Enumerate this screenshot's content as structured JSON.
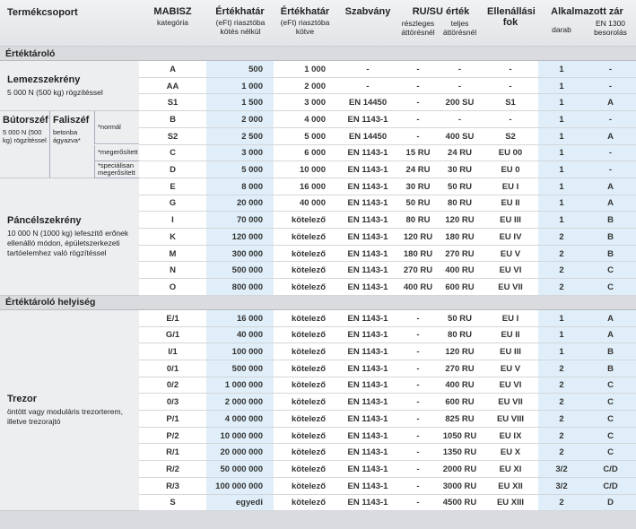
{
  "header": {
    "group": "Termékcsoport",
    "mabisz": {
      "title": "MABISZ",
      "sub": "kategória"
    },
    "limit1": {
      "title": "Értékhatár",
      "sub": "(eFt) riasztóba kötés nélkül"
    },
    "limit2": {
      "title": "Értékhatár",
      "sub": "(eFt) riasztóba kötve"
    },
    "standard": "Szabvány",
    "ru": {
      "title": "RU/SU érték",
      "partial": "részleges áttörésnél",
      "full": "teljes áttörésnél"
    },
    "grade": "Ellenállási fok",
    "lock": {
      "title": "Alkalmazott zár",
      "count": "darab",
      "en": "EN 1300 besorolás"
    }
  },
  "sections": [
    {
      "title": "Értéktároló",
      "groups": [
        {
          "name": "Lemezszekrény",
          "desc": "5 000 N (500 kg) rögzítéssel",
          "rows": [
            [
              "A",
              "500",
              "1 000",
              "-",
              "-",
              "-",
              "-",
              "1",
              "-"
            ],
            [
              "AA",
              "1 000",
              "2 000",
              "-",
              "-",
              "-",
              "-",
              "1",
              "-"
            ],
            [
              "S1",
              "1 500",
              "3 000",
              "EN 14450",
              "-",
              "200 SU",
              "S1",
              "1",
              "A"
            ]
          ]
        },
        {
          "name": "Bútorszéf",
          "desc": "5 000 N (500 kg) rögzítéssel",
          "name2": "Faliszéf",
          "desc2": "betonba ágyazva*",
          "note_groups": [
            {
              "note": "*normál",
              "rows": [
                [
                  "B",
                  "2 000",
                  "4 000",
                  "EN 1143-1",
                  "-",
                  "-",
                  "-",
                  "1",
                  "-"
                ],
                [
                  "S2",
                  "2 500",
                  "5 000",
                  "EN 14450",
                  "-",
                  "400 SU",
                  "S2",
                  "1",
                  "A"
                ]
              ]
            },
            {
              "note": "*megerősített",
              "rows": [
                [
                  "C",
                  "3 000",
                  "6 000",
                  "EN 1143-1",
                  "15 RU",
                  "24 RU",
                  "EU 00",
                  "1",
                  "-"
                ]
              ]
            },
            {
              "note": "*speciálisan megerősített",
              "rows": [
                [
                  "D",
                  "5 000",
                  "10 000",
                  "EN 1143-1",
                  "24 RU",
                  "30 RU",
                  "EU 0",
                  "1",
                  "-"
                ]
              ]
            }
          ]
        },
        {
          "name": "Páncélszekrény",
          "desc": "10 000 N (1000 kg) lefeszítő erőnek ellenálló módon, épületszerkezeti tartóelemhez való rögzítéssel",
          "rows": [
            [
              "E",
              "8 000",
              "16 000",
              "EN 1143-1",
              "30 RU",
              "50 RU",
              "EU I",
              "1",
              "A"
            ],
            [
              "G",
              "20 000",
              "40 000",
              "EN 1143-1",
              "50 RU",
              "80 RU",
              "EU II",
              "1",
              "A"
            ],
            [
              "I",
              "70 000",
              "kötelező",
              "EN 1143-1",
              "80 RU",
              "120 RU",
              "EU III",
              "1",
              "B"
            ],
            [
              "K",
              "120 000",
              "kötelező",
              "EN 1143-1",
              "120 RU",
              "180 RU",
              "EU IV",
              "2",
              "B"
            ],
            [
              "M",
              "300 000",
              "kötelező",
              "EN 1143-1",
              "180 RU",
              "270 RU",
              "EU V",
              "2",
              "B"
            ],
            [
              "N",
              "500 000",
              "kötelező",
              "EN 1143-1",
              "270 RU",
              "400 RU",
              "EU VI",
              "2",
              "C"
            ],
            [
              "O",
              "800 000",
              "kötelező",
              "EN 1143-1",
              "400 RU",
              "600 RU",
              "EU VII",
              "2",
              "C"
            ]
          ]
        }
      ]
    },
    {
      "title": "Értéktároló helyiség",
      "groups": [
        {
          "name": "Trezor",
          "desc": "öntött vagy moduláris trezorterem, illetve trezorajtó",
          "rows": [
            [
              "E/1",
              "16 000",
              "kötelező",
              "EN 1143-1",
              "-",
              "50 RU",
              "EU I",
              "1",
              "A"
            ],
            [
              "G/1",
              "40 000",
              "kötelező",
              "EN 1143-1",
              "-",
              "80 RU",
              "EU II",
              "1",
              "A"
            ],
            [
              "I/1",
              "100 000",
              "kötelező",
              "EN 1143-1",
              "-",
              "120 RU",
              "EU III",
              "1",
              "B"
            ],
            [
              "0/1",
              "500 000",
              "kötelező",
              "EN 1143-1",
              "-",
              "270 RU",
              "EU V",
              "2",
              "B"
            ],
            [
              "0/2",
              "1 000 000",
              "kötelező",
              "EN 1143-1",
              "-",
              "400 RU",
              "EU VI",
              "2",
              "C"
            ],
            [
              "0/3",
              "2 000 000",
              "kötelező",
              "EN 1143-1",
              "-",
              "600 RU",
              "EU VII",
              "2",
              "C"
            ],
            [
              "P/1",
              "4 000 000",
              "kötelező",
              "EN 1143-1",
              "-",
              "825 RU",
              "EU VIII",
              "2",
              "C"
            ],
            [
              "P/2",
              "10 000 000",
              "kötelező",
              "EN 1143-1",
              "-",
              "1050 RU",
              "EU IX",
              "2",
              "C"
            ],
            [
              "R/1",
              "20 000 000",
              "kötelező",
              "EN 1143-1",
              "-",
              "1350 RU",
              "EU X",
              "2",
              "C"
            ],
            [
              "R/2",
              "50 000 000",
              "kötelező",
              "EN 1143-1",
              "-",
              "2000 RU",
              "EU XI",
              "3/2",
              "C/D"
            ],
            [
              "R/3",
              "100 000 000",
              "kötelező",
              "EN 1143-1",
              "-",
              "3000 RU",
              "EU XII",
              "3/2",
              "C/D"
            ],
            [
              "S",
              "egyedi",
              "kötelező",
              "EN 1143-1",
              "-",
              "4500 RU",
              "EU XIII",
              "2",
              "D"
            ]
          ]
        }
      ]
    }
  ]
}
